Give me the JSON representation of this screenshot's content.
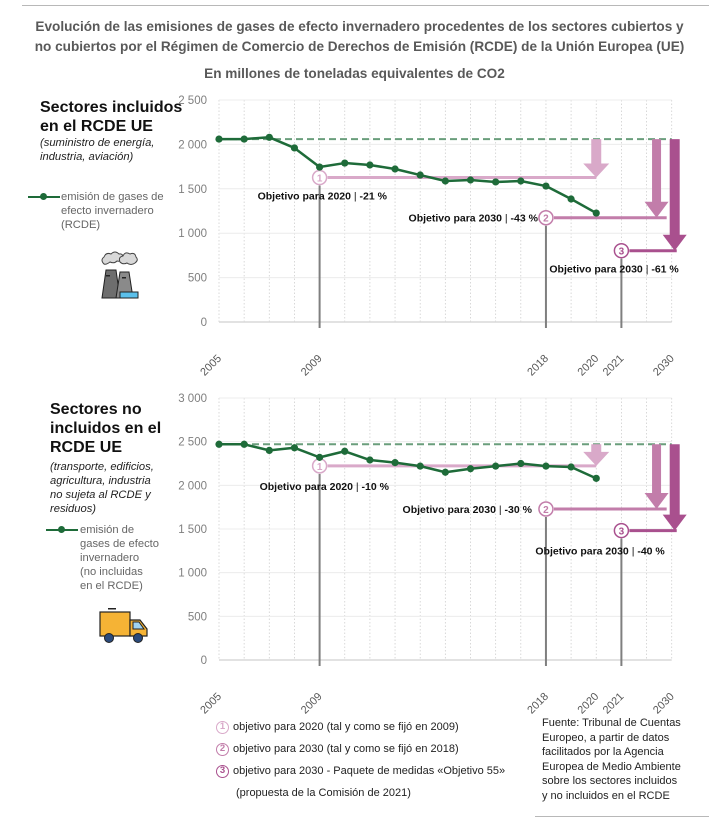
{
  "header": {
    "title_line1": "Evolución de las emisiones de gases de efecto invernadero procedentes de los sectores cubiertos y",
    "title_line2": "no cubiertos por el Régimen de Comercio de Derechos de Emisión (RCDE) de la Unión Europea (UE)",
    "subtitle": "En millones de toneladas equivalentes de CO2"
  },
  "colors": {
    "series": "#1e6b39",
    "baseline_dash": "#6a9e7c",
    "target1": "#d9a9c9",
    "target2": "#c27daa",
    "target3": "#a9508e",
    "grid": "#d0d0d0",
    "marker_line": "#7f7f7f"
  },
  "panels": [
    {
      "section_title_lines": [
        "Sectores incluidos",
        "en el RCDE UE"
      ],
      "section_sub_lines": [
        "(suministro de energía,",
        "industria, aviación)"
      ],
      "legend_lines": [
        "emisión de gases de",
        "efecto invernadero",
        "(RCDE)"
      ],
      "icon": "factory-icon"
    },
    {
      "section_title_lines": [
        "Sectores no",
        "incluidos en el",
        "RCDE UE"
      ],
      "section_sub_lines": [
        "(transporte, edificios,",
        "agricultura, industria",
        "no sujeta al RCDE y",
        "residuos)"
      ],
      "legend_lines": [
        "emisión de",
        "gases de efecto",
        "invernadero",
        "(no incluidas",
        "en el RCDE)"
      ],
      "icon": "truck-icon"
    }
  ],
  "chart_data": [
    {
      "type": "line",
      "title": "Sectores incluidos en el RCDE UE",
      "xlabel": "",
      "ylabel": "",
      "ylim": [
        0,
        2500
      ],
      "yticks": [
        0,
        500,
        1000,
        1500,
        2000,
        2500
      ],
      "ytick_labels": [
        "0",
        "500",
        "1 000",
        "1 500",
        "2 000",
        "2 500"
      ],
      "xticks_shown": [
        "2005",
        "2009",
        "2018",
        "2020",
        "2021",
        "2030"
      ],
      "x_slots": [
        "2005",
        "2006",
        "2007",
        "2008",
        "2009",
        "2010",
        "2011",
        "2012",
        "2013",
        "2014",
        "2015",
        "2016",
        "2017",
        "2018",
        "2019",
        "2020",
        "2021",
        "2022",
        "2030"
      ],
      "grid": true,
      "series": [
        {
          "name": "emisión de gases de efecto invernadero (RCDE)",
          "x": [
            2005,
            2006,
            2007,
            2008,
            2009,
            2010,
            2011,
            2012,
            2013,
            2014,
            2015,
            2016,
            2017,
            2018,
            2019,
            2020
          ],
          "values": [
            2060,
            2060,
            2080,
            1960,
            1745,
            1790,
            1768,
            1723,
            1655,
            1588,
            1599,
            1577,
            1588,
            1531,
            1385,
            1227
          ]
        }
      ],
      "baseline": 2060,
      "vertical_markers": [
        2009,
        2018,
        2021
      ],
      "targets": [
        {
          "id": "1",
          "label": "Objetivo para 2020",
          "pct": "-21 %",
          "value": 1627,
          "set_in": 2009,
          "arrow_at": 2020
        },
        {
          "id": "2",
          "label": "Objetivo para 2030",
          "pct": "-43 %",
          "value": 1174,
          "set_in": 2018,
          "arrow_at": 2029
        },
        {
          "id": "3",
          "label": "Objetivo para 2030",
          "pct": "-61 %",
          "value": 803,
          "set_in": 2021,
          "arrow_at": 2030
        }
      ]
    },
    {
      "type": "line",
      "title": "Sectores no incluidos en el RCDE UE",
      "xlabel": "",
      "ylabel": "",
      "ylim": [
        0,
        3000
      ],
      "yticks": [
        0,
        500,
        1000,
        1500,
        2000,
        2500,
        3000
      ],
      "ytick_labels": [
        "0",
        "500",
        "1 000",
        "1 500",
        "2 000",
        "2 500",
        "3 000"
      ],
      "xticks_shown": [
        "2005",
        "2009",
        "2018",
        "2020",
        "2021",
        "2030"
      ],
      "x_slots": [
        "2005",
        "2006",
        "2007",
        "2008",
        "2009",
        "2010",
        "2011",
        "2012",
        "2013",
        "2014",
        "2015",
        "2016",
        "2017",
        "2018",
        "2019",
        "2020",
        "2021",
        "2022",
        "2030"
      ],
      "grid": true,
      "series": [
        {
          "name": "emisión de gases de efecto invernadero (no incluidas en el RCDE)",
          "x": [
            2005,
            2006,
            2007,
            2008,
            2009,
            2010,
            2011,
            2012,
            2013,
            2014,
            2015,
            2016,
            2017,
            2018,
            2019,
            2020
          ],
          "values": [
            2470,
            2470,
            2400,
            2430,
            2320,
            2390,
            2290,
            2260,
            2220,
            2150,
            2190,
            2220,
            2250,
            2220,
            2210,
            2080
          ]
        }
      ],
      "baseline": 2470,
      "vertical_markers": [
        2009,
        2018,
        2021
      ],
      "targets": [
        {
          "id": "1",
          "label": "Objetivo para 2020",
          "pct": "-10 %",
          "value": 2223,
          "set_in": 2009,
          "arrow_at": 2020
        },
        {
          "id": "2",
          "label": "Objetivo para 2030",
          "pct": "-30 %",
          "value": 1729,
          "set_in": 2018,
          "arrow_at": 2029
        },
        {
          "id": "3",
          "label": "Objetivo para 2030",
          "pct": "-40 %",
          "value": 1482,
          "set_in": 2021,
          "arrow_at": 2030
        }
      ]
    }
  ],
  "notes": [
    {
      "id": "1",
      "text": "objetivo para 2020 (tal y como se fijó en 2009)"
    },
    {
      "id": "2",
      "text": "objetivo para 2030 (tal y como se fijó en 2018)"
    },
    {
      "id": "3",
      "text": "objetivo para 2030 - Paquete de medidas «Objetivo 55»"
    },
    {
      "id": "",
      "text": "(propuesta de la Comisión de 2021)"
    }
  ],
  "source_lines": [
    "Fuente: Tribunal de Cuentas",
    "Europeo, a partir de datos",
    "facilitados por la Agencia",
    "Europea de Medio Ambiente",
    "sobre los sectores incluidos",
    "y no incluidos en el RCDE"
  ]
}
